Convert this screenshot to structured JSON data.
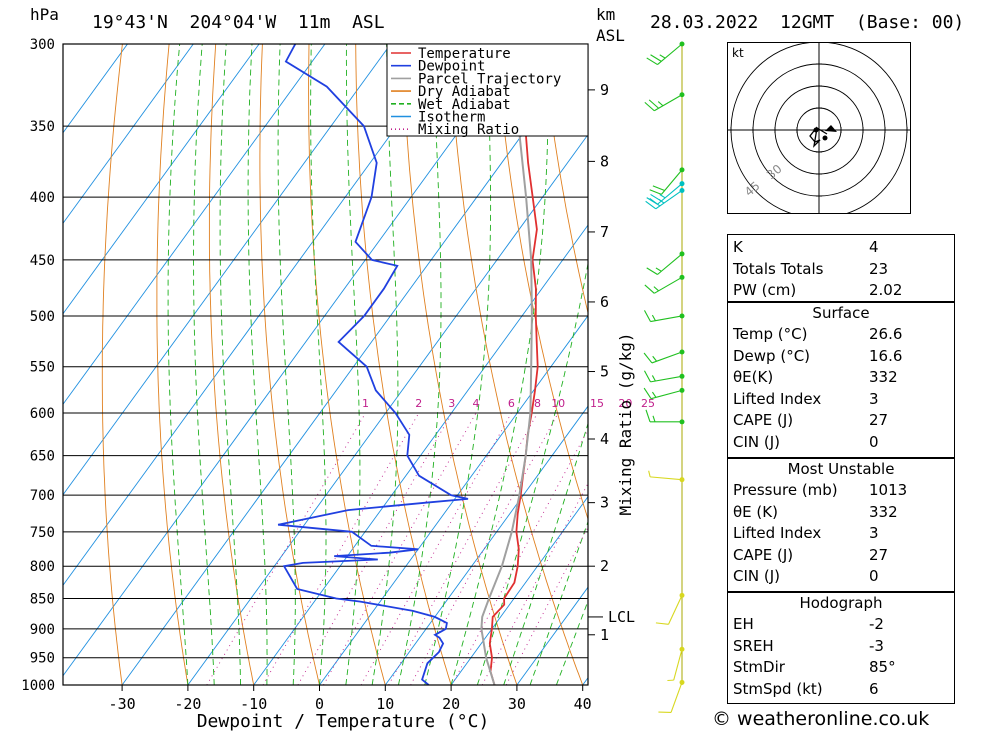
{
  "header": {
    "pressure_unit": "hPa",
    "location": "19°43'N  204°04'W  11m  ASL",
    "km_label": "km",
    "asl_label": "ASL",
    "datetime": "28.03.2022  12GMT  (Base: 00)"
  },
  "chart_data": {
    "type": "line",
    "xlabel": "Dewpoint / Temperature (°C)",
    "ylabel_right": "Mixing Ratio (g/kg)",
    "x_ticks": [
      -30,
      -20,
      -10,
      0,
      10,
      20,
      30,
      40
    ],
    "pressure_levels": [
      300,
      350,
      400,
      450,
      500,
      550,
      600,
      650,
      700,
      750,
      800,
      850,
      900,
      950,
      1000
    ],
    "km_ticks": [
      {
        "label": "1",
        "p": 910
      },
      {
        "label": "2",
        "p": 800
      },
      {
        "label": "3",
        "p": 710
      },
      {
        "label": "4",
        "p": 630
      },
      {
        "label": "5",
        "p": 555
      },
      {
        "label": "6",
        "p": 487
      },
      {
        "label": "7",
        "p": 427
      },
      {
        "label": "8",
        "p": 374
      },
      {
        "label": "9",
        "p": 327
      }
    ],
    "lcl": {
      "label": "LCL",
      "p": 880
    },
    "mixing_ratio_labels": [
      "1",
      "2",
      "3",
      "4",
      "6",
      "8",
      "10",
      "15",
      "20",
      "25"
    ],
    "legend": [
      "Temperature",
      "Dewpoint",
      "Parcel Trajectory",
      "Dry Adiabat",
      "Wet Adiabat",
      "Isotherm",
      "Mixing Ratio"
    ],
    "colors": {
      "temperature": "#e03030",
      "dewpoint": "#2040e0",
      "parcel": "#a0a0a0",
      "dry_adiabat": "#e08020",
      "wet_adiabat": "#20b020",
      "isotherm": "#2090e0",
      "mixing_ratio": "#c0208c"
    },
    "series": [
      {
        "name": "Temperature",
        "points": [
          [
            1000,
            26.6
          ],
          [
            975,
            24.5
          ],
          [
            950,
            23.2
          ],
          [
            925,
            21.3
          ],
          [
            900,
            20.0
          ],
          [
            880,
            18.8
          ],
          [
            860,
            19.2
          ],
          [
            850,
            18.5
          ],
          [
            825,
            18.3
          ],
          [
            800,
            17.0
          ],
          [
            775,
            15.3
          ],
          [
            750,
            13.0
          ],
          [
            725,
            11.2
          ],
          [
            700,
            9.6
          ],
          [
            675,
            7.8
          ],
          [
            650,
            6.0
          ],
          [
            625,
            4.0
          ],
          [
            600,
            2.2
          ],
          [
            575,
            0.2
          ],
          [
            550,
            -2.0
          ],
          [
            525,
            -4.9
          ],
          [
            500,
            -7.9
          ],
          [
            475,
            -10.9
          ],
          [
            450,
            -14.6
          ],
          [
            425,
            -17.3
          ],
          [
            400,
            -21.5
          ],
          [
            375,
            -26.0
          ],
          [
            350,
            -30.5
          ],
          [
            325,
            -35.8
          ],
          [
            300,
            -40.5
          ]
        ]
      },
      {
        "name": "Dewpoint",
        "points": [
          [
            1000,
            16.6
          ],
          [
            990,
            15.0
          ],
          [
            960,
            14.0
          ],
          [
            940,
            14.5
          ],
          [
            925,
            14.2
          ],
          [
            915,
            13.0
          ],
          [
            910,
            12.0
          ],
          [
            905,
            12.5
          ],
          [
            900,
            13.0
          ],
          [
            890,
            12.5
          ],
          [
            880,
            10.0
          ],
          [
            870,
            6.0
          ],
          [
            855,
            -3.0
          ],
          [
            850,
            -7.0
          ],
          [
            835,
            -14.0
          ],
          [
            800,
            -18.5
          ],
          [
            795,
            -16.0
          ],
          [
            790,
            -5.0
          ],
          [
            785,
            -12.0
          ],
          [
            780,
            -4.0
          ],
          [
            775,
            0.0
          ],
          [
            770,
            -7.5
          ],
          [
            750,
            -12.0
          ],
          [
            740,
            -24.0
          ],
          [
            720,
            -15.0
          ],
          [
            710,
            -4.0
          ],
          [
            705,
            2.0
          ],
          [
            700,
            -1.0
          ],
          [
            675,
            -8.0
          ],
          [
            650,
            -12.0
          ],
          [
            625,
            -14.0
          ],
          [
            600,
            -18.5
          ],
          [
            575,
            -24.0
          ],
          [
            550,
            -28.0
          ],
          [
            525,
            -35.0
          ],
          [
            500,
            -34.0
          ],
          [
            475,
            -34.0
          ],
          [
            455,
            -34.5
          ],
          [
            450,
            -39.0
          ],
          [
            435,
            -43.5
          ],
          [
            400,
            -46.0
          ],
          [
            375,
            -49.0
          ],
          [
            350,
            -55.0
          ],
          [
            325,
            -65.0
          ],
          [
            310,
            -74.0
          ],
          [
            300,
            -74.5
          ]
        ]
      },
      {
        "name": "Parcel Trajectory",
        "points": [
          [
            1000,
            26.6
          ],
          [
            950,
            22.3
          ],
          [
            900,
            18.4
          ],
          [
            880,
            17.2
          ],
          [
            850,
            16.2
          ],
          [
            800,
            14.6
          ],
          [
            750,
            12.3
          ],
          [
            700,
            9.4
          ],
          [
            650,
            6.0
          ],
          [
            600,
            2.0
          ],
          [
            550,
            -3.0
          ],
          [
            500,
            -8.5
          ],
          [
            450,
            -14.8
          ],
          [
            400,
            -22.5
          ],
          [
            350,
            -31.5
          ],
          [
            300,
            -43.0
          ]
        ]
      }
    ]
  },
  "wind_barbs": {
    "colors": {
      "high": "#20c020",
      "upper": "#00c0c0",
      "low": "#d8d820"
    },
    "levels": [
      {
        "p": 300,
        "dir": 230,
        "speed": 25,
        "band": "high"
      },
      {
        "p": 330,
        "dir": 240,
        "speed": 25,
        "band": "high"
      },
      {
        "p": 380,
        "dir": 220,
        "speed": 20,
        "band": "high"
      },
      {
        "p": 390,
        "dir": 230,
        "speed": 25,
        "band": "upper"
      },
      {
        "p": 395,
        "dir": 235,
        "speed": 25,
        "band": "upper"
      },
      {
        "p": 445,
        "dir": 230,
        "speed": 15,
        "band": "high"
      },
      {
        "p": 465,
        "dir": 240,
        "speed": 15,
        "band": "high"
      },
      {
        "p": 500,
        "dir": 260,
        "speed": 15,
        "band": "high"
      },
      {
        "p": 535,
        "dir": 250,
        "speed": 15,
        "band": "high"
      },
      {
        "p": 560,
        "dir": 260,
        "speed": 15,
        "band": "high"
      },
      {
        "p": 575,
        "dir": 255,
        "speed": 15,
        "band": "high"
      },
      {
        "p": 610,
        "dir": 270,
        "speed": 15,
        "band": "high"
      },
      {
        "p": 680,
        "dir": 275,
        "speed": 5,
        "band": "low"
      },
      {
        "p": 845,
        "dir": 205,
        "speed": 10,
        "band": "low"
      },
      {
        "p": 935,
        "dir": 195,
        "speed": 5,
        "band": "low"
      },
      {
        "p": 995,
        "dir": 200,
        "speed": 10,
        "band": "low"
      }
    ]
  },
  "hodograph": {
    "unit": "kt",
    "ring_labels": [
      "30",
      "45"
    ]
  },
  "indices": {
    "general": [
      {
        "label": "K",
        "value": "4"
      },
      {
        "label": "Totals Totals",
        "value": "23"
      },
      {
        "label": "PW (cm)",
        "value": "2.02"
      }
    ],
    "surface": {
      "title": "Surface",
      "rows": [
        {
          "label": "Temp (°C)",
          "value": "26.6"
        },
        {
          "label": "Dewp (°C)",
          "value": "16.6"
        },
        {
          "label": "θE(K)",
          "value": "332"
        },
        {
          "label": "Lifted Index",
          "value": "3"
        },
        {
          "label": "CAPE (J)",
          "value": "27"
        },
        {
          "label": "CIN (J)",
          "value": "0"
        }
      ]
    },
    "most_unstable": {
      "title": "Most Unstable",
      "rows": [
        {
          "label": "Pressure (mb)",
          "value": "1013"
        },
        {
          "label": "θE (K)",
          "value": "332"
        },
        {
          "label": "Lifted Index",
          "value": "3"
        },
        {
          "label": "CAPE (J)",
          "value": "27"
        },
        {
          "label": "CIN (J)",
          "value": "0"
        }
      ]
    },
    "hodograph": {
      "title": "Hodograph",
      "rows": [
        {
          "label": "EH",
          "value": "-2"
        },
        {
          "label": "SREH",
          "value": "-3"
        },
        {
          "label": "StmDir",
          "value": "85°"
        },
        {
          "label": "StmSpd (kt)",
          "value": "6"
        }
      ]
    }
  },
  "footer": "© weatheronline.co.uk"
}
